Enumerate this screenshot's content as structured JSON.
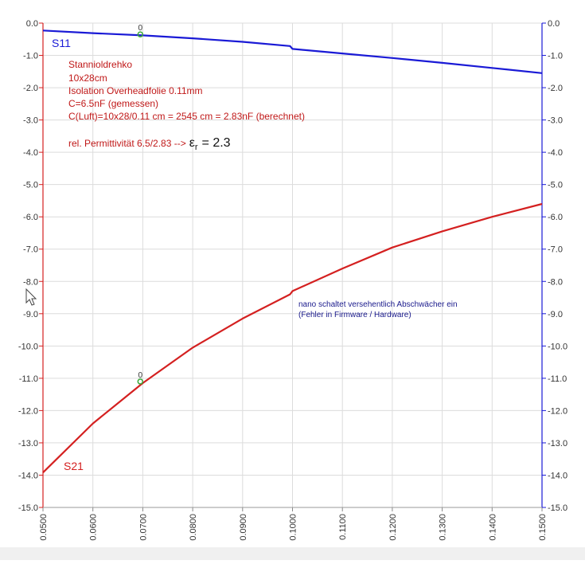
{
  "chart_data": {
    "type": "line",
    "x_ticks": [
      "0.0500",
      "0.0600",
      "0.0700",
      "0.0800",
      "0.0900",
      "0.1000",
      "0.1100",
      "0.1200",
      "0.1300",
      "0.1400",
      "0.1500"
    ],
    "y_left_ticks": [
      "0.0",
      "-1.0",
      "-2.0",
      "-3.0",
      "-4.0",
      "-5.0",
      "-6.0",
      "-7.0",
      "-8.0",
      "-9.0",
      "-10.0",
      "-11.0",
      "-12.0",
      "-13.0",
      "-14.0",
      "-15.0"
    ],
    "y_right_ticks": [
      "0.0",
      "-1.0",
      "-2.0",
      "-3.0",
      "-4.0",
      "-5.0",
      "-6.0",
      "-7.0",
      "-8.0",
      "-9.0",
      "-10.0",
      "-11.0",
      "-12.0",
      "-13.0",
      "-14.0",
      "-15.0"
    ],
    "xlim": [
      0.05,
      0.15
    ],
    "ylim": [
      -15,
      0
    ],
    "grid": true,
    "series": [
      {
        "name": "S11",
        "color": "#1a1ad6",
        "x": [
          0.05,
          0.06,
          0.07,
          0.08,
          0.09,
          0.0995,
          0.1,
          0.11,
          0.12,
          0.13,
          0.14,
          0.15
        ],
        "y": [
          -0.23,
          -0.31,
          -0.38,
          -0.47,
          -0.58,
          -0.71,
          -0.8,
          -0.94,
          -1.08,
          -1.23,
          -1.39,
          -1.55
        ]
      },
      {
        "name": "S21",
        "color": "#d42020",
        "x": [
          0.05,
          0.06,
          0.07,
          0.08,
          0.09,
          0.0995,
          0.1,
          0.11,
          0.12,
          0.13,
          0.14,
          0.15
        ],
        "y": [
          -13.92,
          -12.4,
          -11.15,
          -10.05,
          -9.15,
          -8.4,
          -8.3,
          -7.6,
          -6.95,
          -6.45,
          -6.0,
          -5.6
        ]
      }
    ],
    "markers": [
      {
        "series": "S11",
        "label": "0",
        "x": 0.0695,
        "y": -0.35
      },
      {
        "series": "S21",
        "label": "0",
        "x": 0.0695,
        "y": -11.1
      }
    ],
    "series_labels": {
      "s11": "S11",
      "s21": "S21"
    },
    "annotation_lines": [
      "Stannioldrehko",
      "10x28cm",
      "Isolation Overheadfolie 0.11mm",
      "C=6.5nF (gemessen)",
      "C(Luft)=10x28/0.11 cm = 2545 cm = 2.83nF (berechnet)"
    ],
    "permittivity": {
      "prefix": "rel. Permittivität 6.5/2.83 -->",
      "symbol": "ε",
      "subscript": "r",
      "value": "= 2.3"
    },
    "note_lines": [
      "nano schaltet versehentlich Abschwächer ein",
      "(Fehler in Firmware / Hardware)"
    ],
    "colors": {
      "left_axis": "#d42020",
      "right_axis": "#1a1ad6",
      "grid": "#dcdcdc",
      "note": "#1a1a8c"
    }
  }
}
